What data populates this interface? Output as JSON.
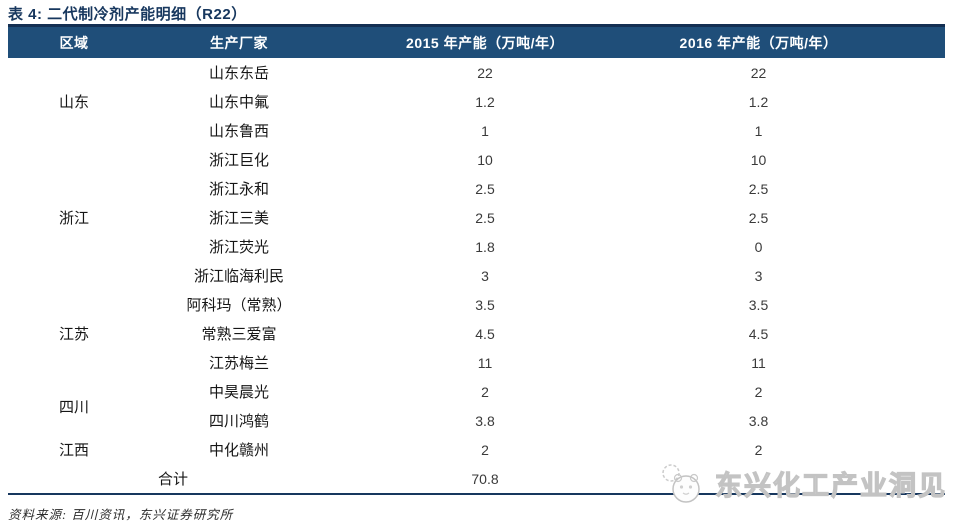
{
  "title": "表 4: 二代制冷剂产能明细（R22）",
  "table": {
    "headers": {
      "region": "区域",
      "producer": "生产厂家",
      "cap2015": "2015 年产能（万吨/年）",
      "cap2016": "2016 年产能（万吨/年）"
    },
    "rows": [
      {
        "region": "山东",
        "region_rowspan": 3,
        "company": "山东东岳",
        "y2015": "22",
        "y2016": "22"
      },
      {
        "company": "山东中氟",
        "y2015": "1.2",
        "y2016": "1.2"
      },
      {
        "company": "山东鲁西",
        "y2015": "1",
        "y2016": "1"
      },
      {
        "region": "浙江",
        "region_rowspan": 5,
        "company": "浙江巨化",
        "y2015": "10",
        "y2016": "10"
      },
      {
        "company": "浙江永和",
        "y2015": "2.5",
        "y2016": "2.5"
      },
      {
        "company": "浙江三美",
        "y2015": "2.5",
        "y2016": "2.5"
      },
      {
        "company": "浙江荧光",
        "y2015": "1.8",
        "y2016": "0"
      },
      {
        "company": "浙江临海利民",
        "y2015": "3",
        "y2016": "3"
      },
      {
        "region": "江苏",
        "region_rowspan": 3,
        "company": "阿科玛（常熟）",
        "y2015": "3.5",
        "y2016": "3.5"
      },
      {
        "company": "常熟三爱富",
        "y2015": "4.5",
        "y2016": "4.5"
      },
      {
        "company": "江苏梅兰",
        "y2015": "11",
        "y2016": "11"
      },
      {
        "region": "四川",
        "region_rowspan": 2,
        "company": "中昊晨光",
        "y2015": "2",
        "y2016": "2"
      },
      {
        "company": "四川鸿鹤",
        "y2015": "3.8",
        "y2016": "3.8"
      },
      {
        "region": "江西",
        "region_rowspan": 1,
        "company": "中化赣州",
        "y2015": "2",
        "y2016": "2"
      }
    ],
    "total": {
      "label": "合计",
      "y2015": "70.8",
      "y2016": ""
    }
  },
  "source": "资料来源: 百川资讯，东兴证券研究所",
  "watermark": {
    "text": "东兴化工产业洞见",
    "icon": "panda-chat-icon"
  },
  "colors": {
    "header_bg": "#1F4E79",
    "title_text": "#17375E",
    "rule_line": "#17375E",
    "watermark": "#C3C3C3"
  }
}
